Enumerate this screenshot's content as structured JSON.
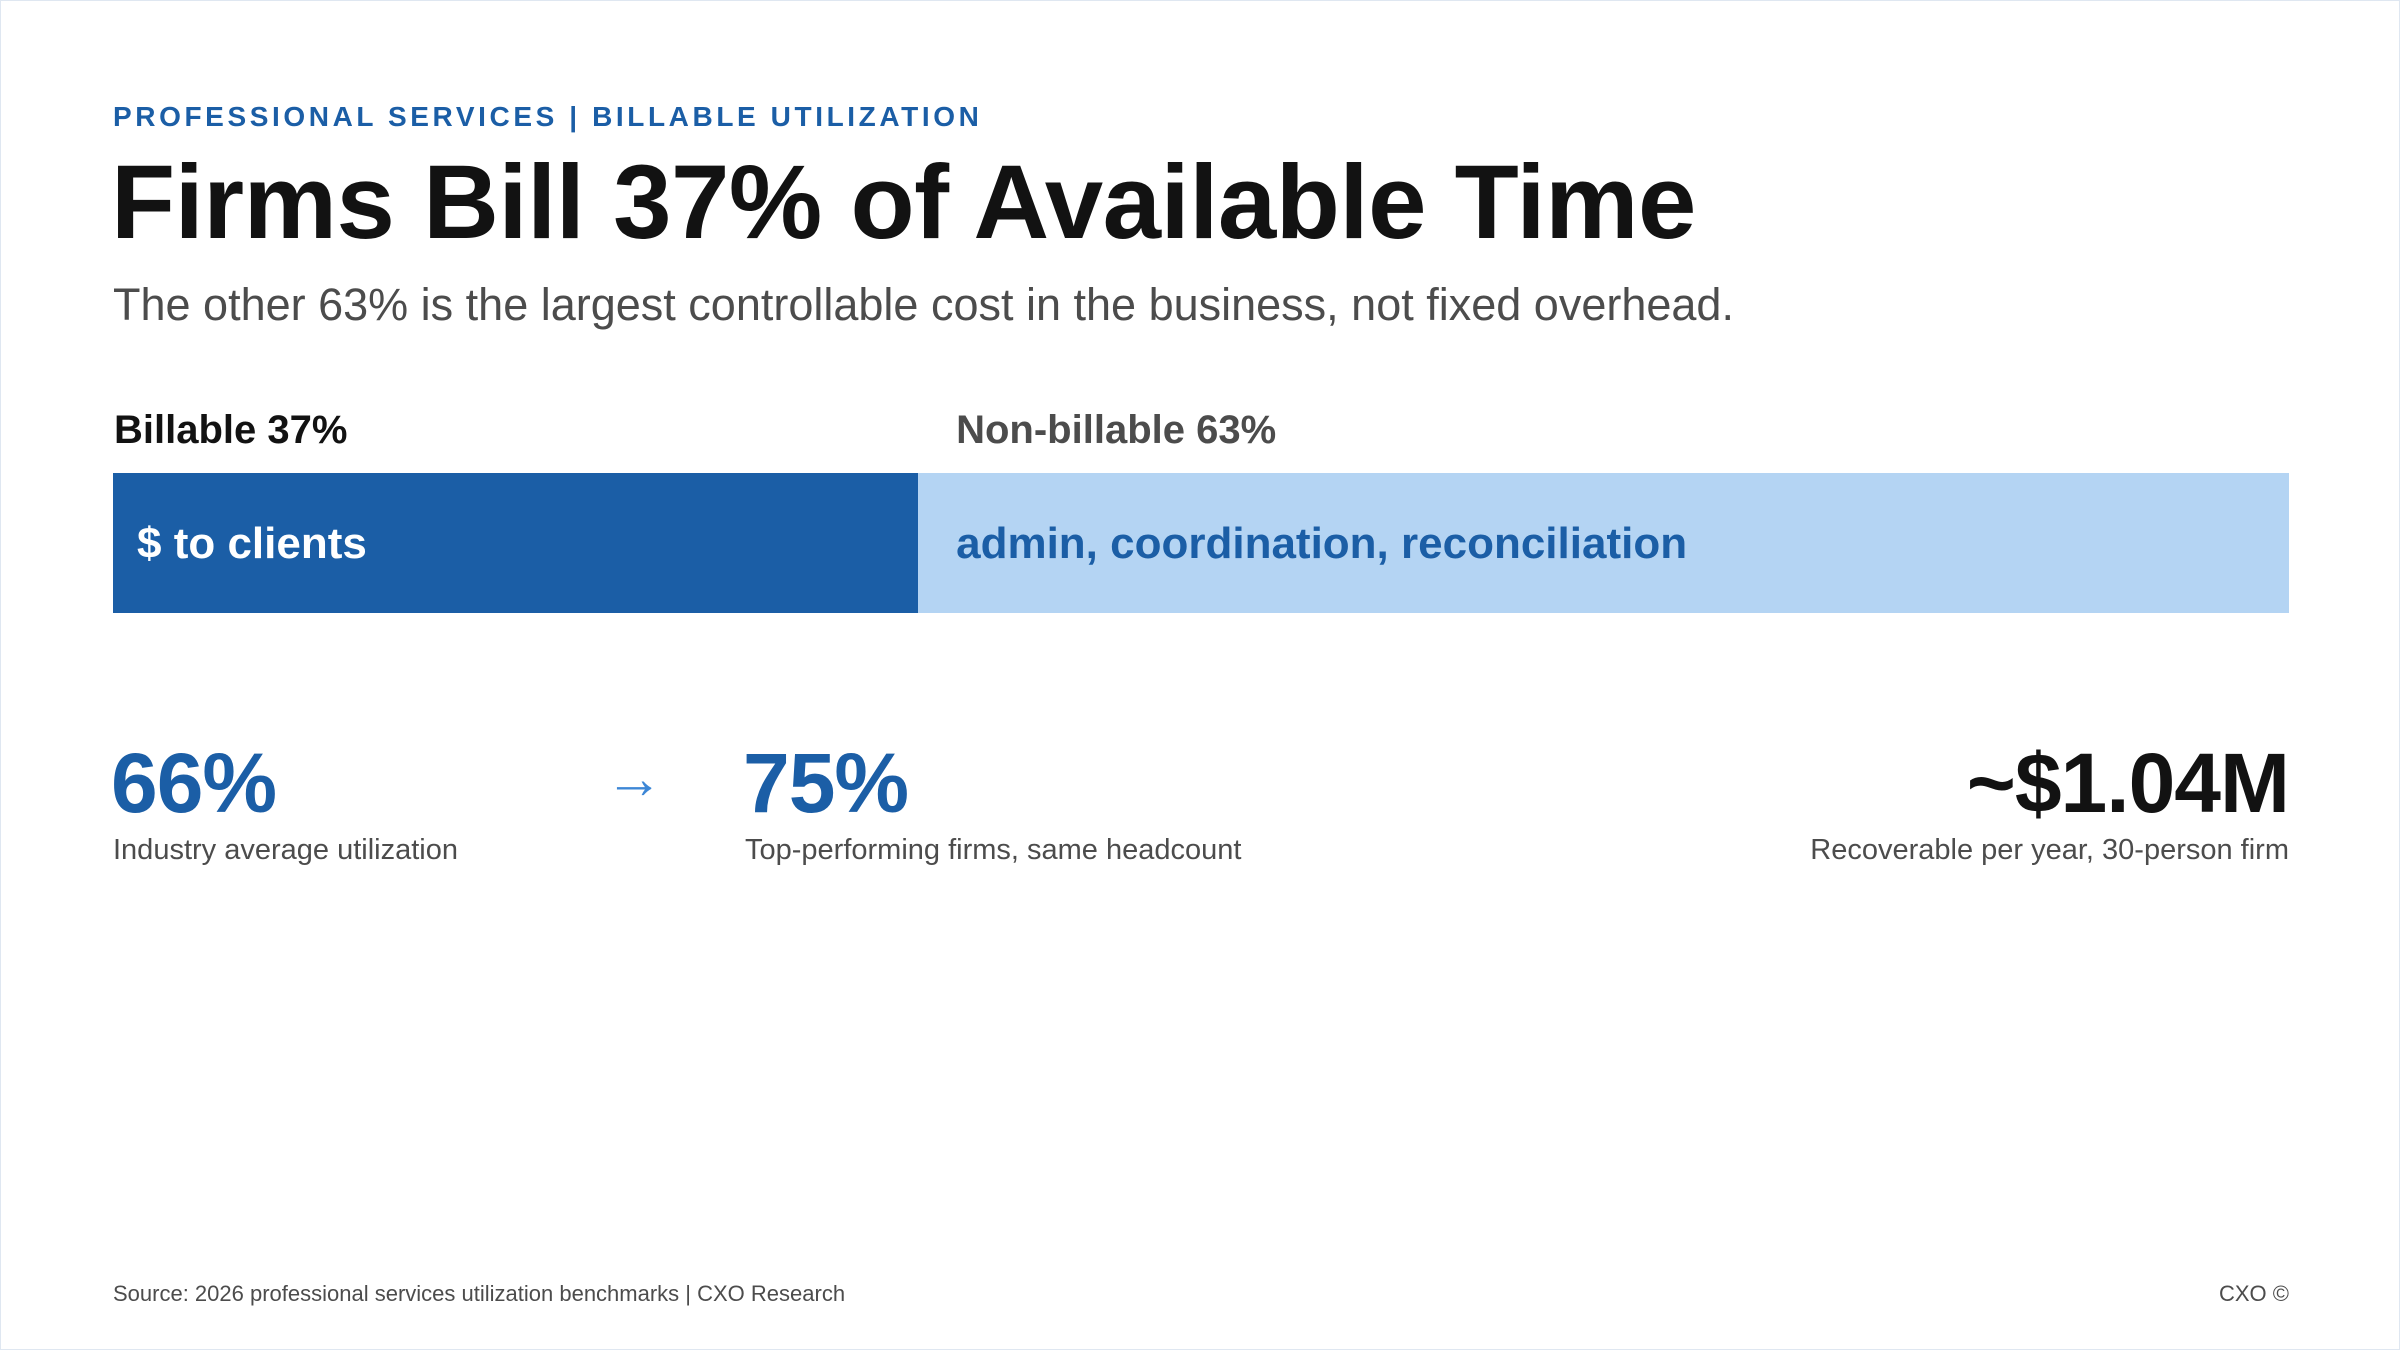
{
  "eyebrow": "PROFESSIONAL SERVICES | BILLABLE UTILIZATION",
  "title": "Firms Bill 37% of Available Time",
  "subtitle": "The other 63% is the largest controllable cost in the business, not fixed overhead.",
  "colors": {
    "billable": "#1b5ea6",
    "non_billable": "#b4d4f3",
    "accent_text": "#1b5ea6",
    "arrow": "#3d87d6",
    "dark_text": "#121212",
    "muted_text": "#4c4c4c"
  },
  "chart_data": {
    "type": "bar",
    "orientation": "horizontal-stacked",
    "unit": "%",
    "series": [
      {
        "heading": "Billable 37%",
        "value": 37,
        "bar_label": "$ to clients"
      },
      {
        "heading": "Non-billable 63%",
        "value": 63,
        "bar_label": "admin, coordination, reconciliation"
      }
    ]
  },
  "stats": [
    {
      "value": "66%",
      "caption": "Industry average utilization"
    },
    {
      "value": "75%",
      "caption": "Top-performing firms, same headcount"
    },
    {
      "value": "~$1.04M",
      "caption": "Recoverable per year, 30-person firm"
    }
  ],
  "arrow_icon": "right-arrow-icon",
  "arrow_glyph": "→",
  "footer": {
    "source": "Source: 2026 professional services utilization benchmarks | CXO Research",
    "brand": "CXO ©"
  }
}
